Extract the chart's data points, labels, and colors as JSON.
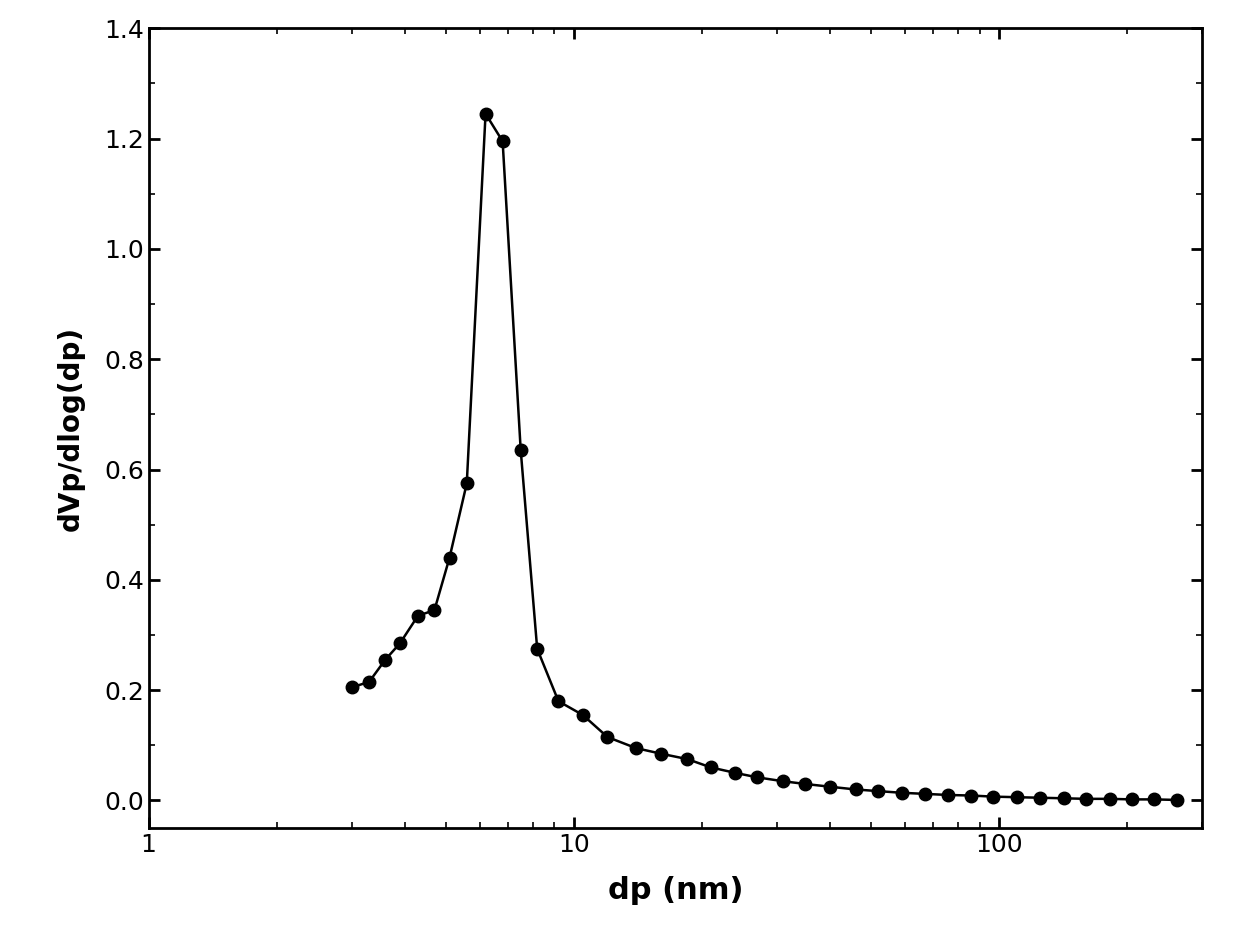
{
  "x": [
    3.0,
    3.3,
    3.6,
    3.9,
    4.3,
    4.7,
    5.1,
    5.6,
    6.2,
    6.8,
    7.5,
    8.2,
    9.2,
    10.5,
    12.0,
    14.0,
    16.0,
    18.5,
    21.0,
    24.0,
    27.0,
    31.0,
    35.0,
    40.0,
    46.0,
    52.0,
    59.0,
    67.0,
    76.0,
    86.0,
    97.0,
    110.0,
    125.0,
    142.0,
    160.0,
    182.0,
    205.0,
    232.0,
    262.0
  ],
  "y": [
    0.205,
    0.215,
    0.255,
    0.285,
    0.335,
    0.345,
    0.44,
    0.575,
    1.245,
    1.195,
    0.635,
    0.275,
    0.18,
    0.155,
    0.115,
    0.095,
    0.085,
    0.075,
    0.06,
    0.05,
    0.042,
    0.035,
    0.03,
    0.025,
    0.02,
    0.017,
    0.014,
    0.012,
    0.01,
    0.009,
    0.007,
    0.006,
    0.005,
    0.004,
    0.003,
    0.003,
    0.002,
    0.002,
    0.001
  ],
  "xlabel": "dp (nm)",
  "ylabel": "dVp/dlog(dp)",
  "xlim": [
    1,
    300
  ],
  "ylim": [
    -0.05,
    1.4
  ],
  "yticks": [
    0.0,
    0.2,
    0.4,
    0.6,
    0.8,
    1.0,
    1.2,
    1.4
  ],
  "line_color": "#000000",
  "marker_color": "#000000",
  "marker_size": 9,
  "line_width": 1.8,
  "background_color": "#ffffff",
  "xlabel_fontsize": 22,
  "ylabel_fontsize": 20,
  "tick_fontsize": 18
}
